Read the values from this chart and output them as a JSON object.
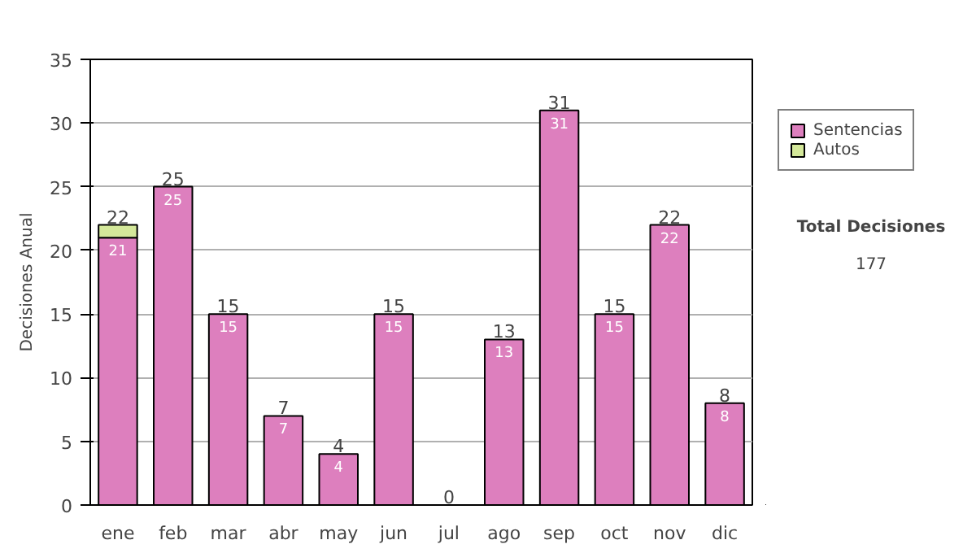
{
  "chart_data": {
    "type": "bar",
    "stacked": true,
    "ylabel": "Decisiones Anual",
    "categories": [
      "ene",
      "feb",
      "mar",
      "abr",
      "may",
      "jun",
      "jul",
      "ago",
      "sep",
      "oct",
      "nov",
      "dic"
    ],
    "series": [
      {
        "name": "Sentencias",
        "color": "#dd7fbe",
        "values": [
          21,
          25,
          15,
          7,
          4,
          15,
          0,
          13,
          31,
          15,
          22,
          8
        ],
        "value_labels": [
          "21",
          "25",
          "15",
          "7",
          "4",
          "15",
          null,
          "13",
          "31",
          "15",
          "22",
          "8"
        ]
      },
      {
        "name": "Autos",
        "color": "#d4e89a",
        "values": [
          1,
          0,
          0,
          0,
          0,
          0,
          0,
          0,
          0,
          0,
          0,
          0
        ]
      }
    ],
    "totals": [
      "22",
      "25",
      "15",
      "7",
      "4",
      "15",
      "0",
      "13",
      "31",
      "15",
      "22",
      "8"
    ],
    "ylim": [
      0,
      35
    ],
    "yticks": [
      0,
      5,
      10,
      15,
      20,
      25,
      30,
      35
    ],
    "grid": "y",
    "legend": "right",
    "annotations": [
      "Total Decisiones",
      "177"
    ]
  }
}
